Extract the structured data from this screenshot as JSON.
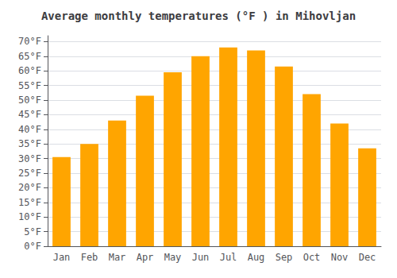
{
  "chart_data": {
    "type": "bar",
    "title": "Average monthly temperatures (°F ) in Mihovljan",
    "categories": [
      "Jan",
      "Feb",
      "Mar",
      "Apr",
      "May",
      "Jun",
      "Jul",
      "Aug",
      "Sep",
      "Oct",
      "Nov",
      "Dec"
    ],
    "values": [
      30.5,
      35.0,
      43.0,
      51.5,
      59.5,
      65.0,
      68.0,
      67.0,
      61.5,
      52.0,
      42.0,
      33.5
    ],
    "color": "#FFA500",
    "ylim": [
      0,
      72
    ],
    "yticks": [
      {
        "value": 0,
        "label": "0°F"
      },
      {
        "value": 5,
        "label": "5°F"
      },
      {
        "value": 10,
        "label": "10°F"
      },
      {
        "value": 15,
        "label": "15°F"
      },
      {
        "value": 20,
        "label": "20°F"
      },
      {
        "value": 25,
        "label": "25°F"
      },
      {
        "value": 30,
        "label": "30°F"
      },
      {
        "value": 35,
        "label": "35°F"
      },
      {
        "value": 40,
        "label": "40°F"
      },
      {
        "value": 45,
        "label": "45°F"
      },
      {
        "value": 50,
        "label": "50°F"
      },
      {
        "value": 55,
        "label": "55°F"
      },
      {
        "value": 60,
        "label": "60°F"
      },
      {
        "value": 65,
        "label": "65°F"
      },
      {
        "value": 70,
        "label": "70°F"
      }
    ],
    "grid": true
  }
}
